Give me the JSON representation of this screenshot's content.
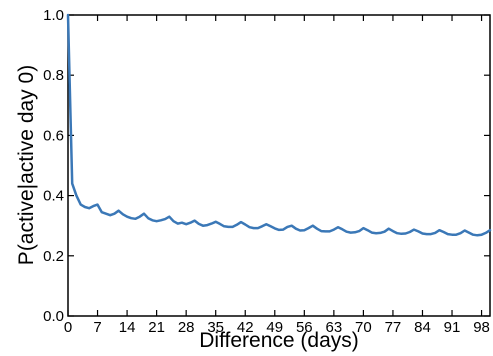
{
  "chart_data": {
    "type": "line",
    "title": "",
    "xlabel": "Difference (days)",
    "ylabel": "P(active|active day 0)",
    "xlim": [
      0,
      100
    ],
    "ylim": [
      0.0,
      1.0
    ],
    "xticks": [
      0,
      7,
      14,
      21,
      28,
      35,
      42,
      49,
      56,
      63,
      70,
      77,
      84,
      91,
      98
    ],
    "xtick_labels": [
      "0",
      "7",
      "14",
      "21",
      "28",
      "35",
      "42",
      "49",
      "56",
      "63",
      "70",
      "77",
      "84",
      "91",
      "98"
    ],
    "yticks": [
      0.0,
      0.2,
      0.4,
      0.6,
      0.8,
      1.0
    ],
    "ytick_labels": [
      "0.0",
      "0.2",
      "0.4",
      "0.6",
      "0.8",
      "1.0"
    ],
    "grid": false,
    "legend": "none",
    "line_color": "#3b78b7",
    "series": [
      {
        "x": [
          0,
          1,
          2,
          3,
          4,
          5,
          6,
          7,
          8,
          9,
          10,
          11,
          12,
          13,
          14,
          15,
          16,
          17,
          18,
          19,
          20,
          21,
          22,
          23,
          24,
          25,
          26,
          27,
          28,
          29,
          30,
          31,
          32,
          33,
          34,
          35,
          36,
          37,
          38,
          39,
          40,
          41,
          42,
          43,
          44,
          45,
          46,
          47,
          48,
          49,
          50,
          51,
          52,
          53,
          54,
          55,
          56,
          57,
          58,
          59,
          60,
          61,
          62,
          63,
          64,
          65,
          66,
          67,
          68,
          69,
          70,
          71,
          72,
          73,
          74,
          75,
          76,
          77,
          78,
          79,
          80,
          81,
          82,
          83,
          84,
          85,
          86,
          87,
          88,
          89,
          90,
          91,
          92,
          93,
          94,
          95,
          96,
          97,
          98,
          99,
          100
        ],
        "values": [
          1.0,
          0.44,
          0.4,
          0.37,
          0.362,
          0.358,
          0.365,
          0.37,
          0.345,
          0.34,
          0.335,
          0.34,
          0.35,
          0.338,
          0.33,
          0.325,
          0.323,
          0.33,
          0.34,
          0.325,
          0.318,
          0.315,
          0.318,
          0.322,
          0.33,
          0.315,
          0.307,
          0.31,
          0.305,
          0.31,
          0.317,
          0.306,
          0.3,
          0.302,
          0.307,
          0.313,
          0.306,
          0.298,
          0.296,
          0.296,
          0.303,
          0.312,
          0.304,
          0.295,
          0.292,
          0.292,
          0.298,
          0.305,
          0.298,
          0.291,
          0.286,
          0.287,
          0.296,
          0.3,
          0.29,
          0.284,
          0.285,
          0.292,
          0.3,
          0.29,
          0.282,
          0.281,
          0.281,
          0.287,
          0.295,
          0.288,
          0.28,
          0.277,
          0.278,
          0.282,
          0.292,
          0.285,
          0.277,
          0.275,
          0.276,
          0.28,
          0.29,
          0.282,
          0.275,
          0.273,
          0.274,
          0.279,
          0.287,
          0.281,
          0.274,
          0.272,
          0.272,
          0.276,
          0.285,
          0.279,
          0.272,
          0.27,
          0.27,
          0.275,
          0.284,
          0.277,
          0.27,
          0.268,
          0.27,
          0.276,
          0.285
        ]
      }
    ]
  }
}
